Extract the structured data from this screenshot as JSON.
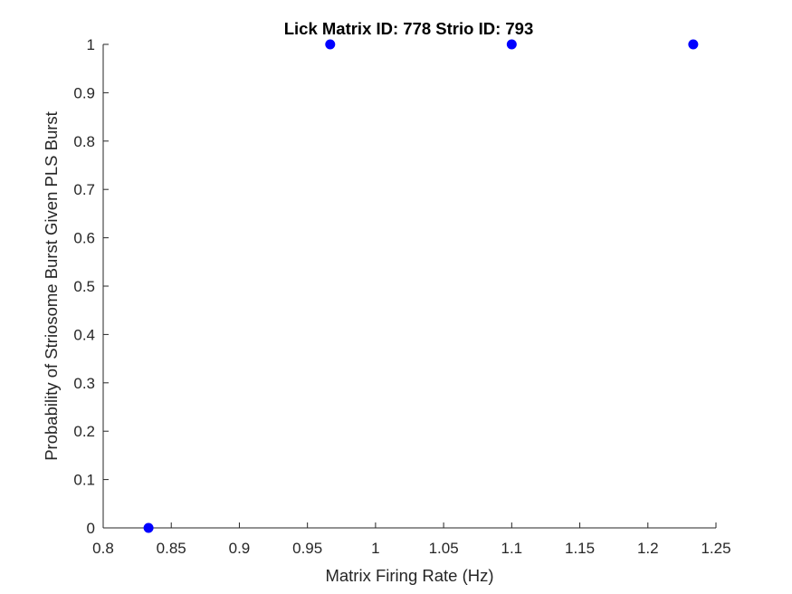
{
  "chart_data": {
    "type": "scatter",
    "title": "Lick Matrix ID: 778 Strio ID: 793",
    "xlabel": "Matrix Firing Rate (Hz)",
    "ylabel": "Probability of Striosome Burst Given PLS Burst",
    "xlim": [
      0.8,
      1.25
    ],
    "ylim": [
      0,
      1
    ],
    "xticks": [
      0.8,
      0.85,
      0.9,
      0.95,
      1,
      1.05,
      1.1,
      1.15,
      1.2,
      1.25
    ],
    "xtick_labels": [
      "0.8",
      "0.85",
      "0.9",
      "0.95",
      "1",
      "1.05",
      "1.1",
      "1.15",
      "1.2",
      "1.25"
    ],
    "yticks": [
      0,
      0.1,
      0.2,
      0.3,
      0.4,
      0.5,
      0.6,
      0.7,
      0.8,
      0.9,
      1
    ],
    "ytick_labels": [
      "0",
      "0.1",
      "0.2",
      "0.3",
      "0.4",
      "0.5",
      "0.6",
      "0.7",
      "0.8",
      "0.9",
      "1"
    ],
    "grid": false,
    "marker_color": "#0000ff",
    "axis_color": "#262626",
    "points": [
      {
        "x": 0.8333,
        "y": 0
      },
      {
        "x": 0.9667,
        "y": 1
      },
      {
        "x": 1.1,
        "y": 1
      },
      {
        "x": 1.2333,
        "y": 1
      }
    ]
  }
}
